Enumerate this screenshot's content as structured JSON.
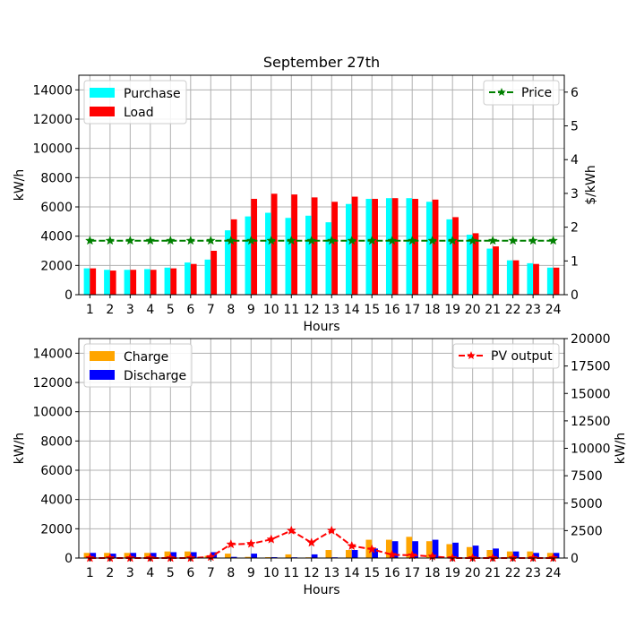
{
  "chart_data": [
    {
      "type": "bar",
      "title": "September 27th",
      "xlabel": "Hours",
      "ylabel": "kW/h",
      "y2label": "$/kWh",
      "ylim": [
        0,
        15000
      ],
      "y2lim": [
        0,
        6.5
      ],
      "yticks": [
        "0",
        "2000",
        "4000",
        "6000",
        "8000",
        "10000",
        "12000",
        "14000"
      ],
      "y2ticks": [
        "0",
        "1",
        "2",
        "3",
        "4",
        "5",
        "6"
      ],
      "categories": [
        "1",
        "2",
        "3",
        "4",
        "5",
        "6",
        "7",
        "8",
        "9",
        "10",
        "11",
        "12",
        "13",
        "14",
        "15",
        "16",
        "17",
        "18",
        "19",
        "20",
        "21",
        "22",
        "23",
        "24"
      ],
      "grid": true,
      "series": [
        {
          "name": "Purchase",
          "kind": "bar",
          "color": "#00ffff",
          "values": [
            1800,
            1700,
            1700,
            1750,
            1850,
            2200,
            2400,
            4400,
            5350,
            5600,
            5250,
            5400,
            4950,
            6200,
            6550,
            6600,
            6600,
            6350,
            5150,
            4100,
            3150,
            2350,
            2150,
            1850
          ]
        },
        {
          "name": "Load",
          "kind": "bar",
          "color": "#ff0000",
          "values": [
            1800,
            1650,
            1700,
            1700,
            1800,
            2100,
            3000,
            5150,
            6550,
            6900,
            6850,
            6650,
            6350,
            6700,
            6550,
            6600,
            6550,
            6500,
            5300,
            4200,
            3300,
            2350,
            2100,
            1850
          ]
        },
        {
          "name": "Price",
          "kind": "line",
          "axis": "right",
          "color": "#008000",
          "values": [
            1.6,
            1.6,
            1.6,
            1.6,
            1.6,
            1.6,
            1.6,
            1.6,
            1.6,
            1.6,
            1.6,
            1.6,
            1.6,
            1.6,
            1.6,
            1.6,
            1.6,
            1.6,
            1.6,
            1.6,
            1.6,
            1.6,
            1.6,
            1.6
          ]
        }
      ],
      "legend_left": "top-left",
      "legend_right": "top-right"
    },
    {
      "type": "bar",
      "title": "",
      "xlabel": "Hours",
      "ylabel": "kW/h",
      "y2label": "kW/h",
      "ylim": [
        0,
        15000
      ],
      "y2lim": [
        0,
        20000
      ],
      "yticks": [
        "0",
        "2000",
        "4000",
        "6000",
        "8000",
        "10000",
        "12000",
        "14000"
      ],
      "y2ticks": [
        "0",
        "2500",
        "5000",
        "7500",
        "10000",
        "12500",
        "15000",
        "17500",
        "20000"
      ],
      "categories": [
        "1",
        "2",
        "3",
        "4",
        "5",
        "6",
        "7",
        "8",
        "9",
        "10",
        "11",
        "12",
        "13",
        "14",
        "15",
        "16",
        "17",
        "18",
        "19",
        "20",
        "21",
        "22",
        "23",
        "24"
      ],
      "grid": true,
      "series": [
        {
          "name": "Charge",
          "kind": "bar",
          "color": "#ffa500",
          "values": [
            350,
            350,
            350,
            350,
            450,
            450,
            150,
            300,
            80,
            60,
            250,
            50,
            550,
            550,
            1250,
            1250,
            1450,
            1150,
            950,
            750,
            550,
            450,
            450,
            350
          ]
        },
        {
          "name": "Discharge",
          "kind": "bar",
          "color": "#0000ff",
          "values": [
            350,
            300,
            350,
            350,
            400,
            400,
            400,
            80,
            300,
            60,
            50,
            250,
            50,
            550,
            650,
            1150,
            1150,
            1250,
            1050,
            850,
            650,
            450,
            350,
            350
          ]
        },
        {
          "name": "PV output",
          "kind": "line",
          "axis": "right",
          "color": "#ff0000",
          "values": [
            0,
            0,
            0,
            0,
            0,
            0,
            100,
            1250,
            1300,
            1700,
            2500,
            1400,
            2500,
            1100,
            800,
            300,
            250,
            150,
            0,
            0,
            0,
            0,
            0,
            0
          ]
        }
      ],
      "legend_left": "top-left",
      "legend_right": "top-right"
    }
  ]
}
